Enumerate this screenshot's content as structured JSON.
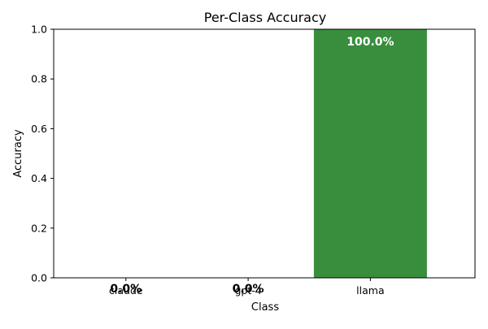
{
  "chart_data": {
    "type": "bar",
    "title": "Per-Class Accuracy",
    "xlabel": "Class",
    "ylabel": "Accuracy",
    "categories": [
      "claude",
      "gpt-4",
      "llama"
    ],
    "values": [
      0.0,
      0.0,
      1.0
    ],
    "data_labels": [
      "0.0%",
      "0.0%",
      "100.0%"
    ],
    "ylim": [
      0,
      1
    ],
    "yticks": [
      "0.0",
      "0.2",
      "0.4",
      "0.6",
      "0.8",
      "1.0"
    ],
    "grid": false,
    "legend": "none",
    "bar_color": "#388e3c",
    "inside_label_color": "#ffffff",
    "outside_label_color": "#000000"
  }
}
